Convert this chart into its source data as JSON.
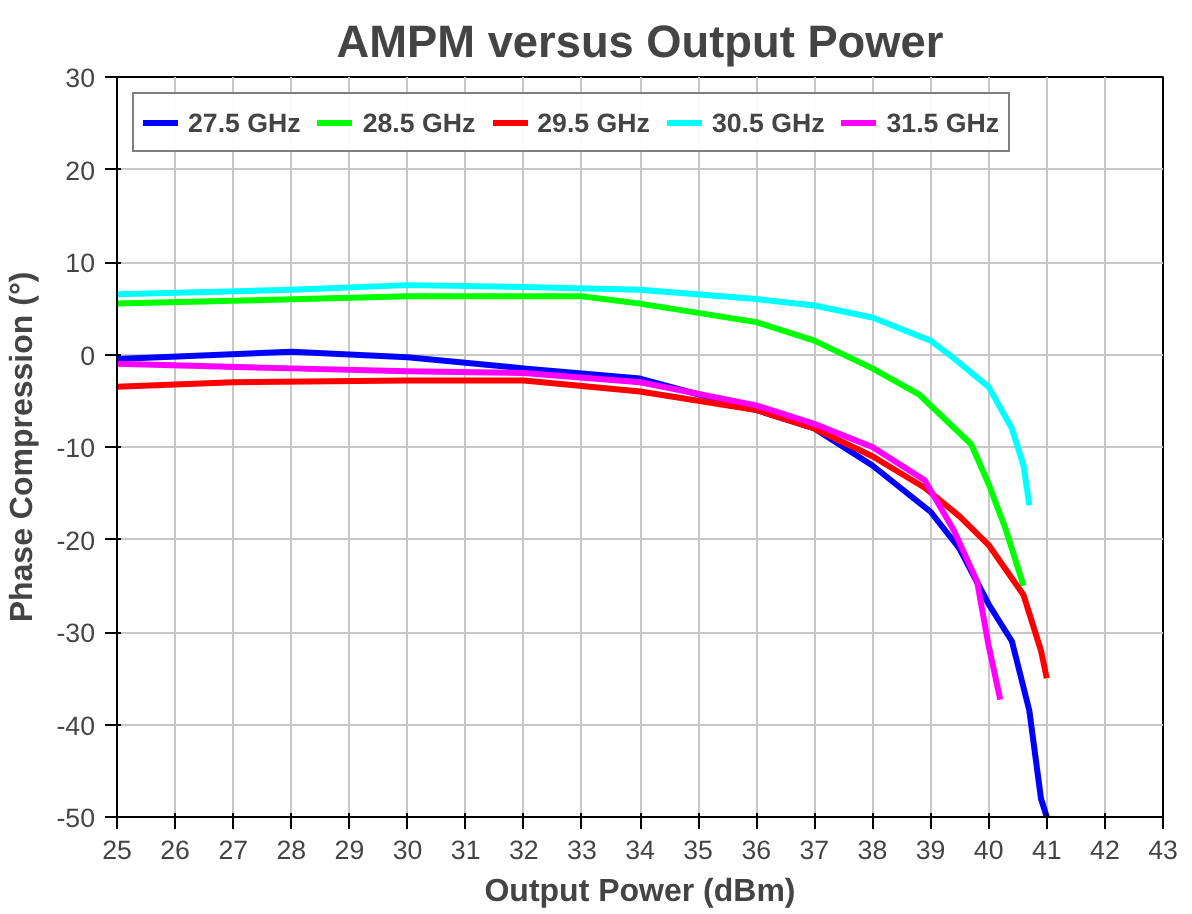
{
  "chart_data": {
    "type": "line",
    "title": "AMPM versus Output Power",
    "xlabel": "Output Power (dBm)",
    "ylabel": "Phase Compression (°)",
    "xlim": [
      25,
      43
    ],
    "xticks": [
      25,
      26,
      27,
      28,
      29,
      30,
      31,
      32,
      33,
      34,
      35,
      36,
      37,
      38,
      39,
      40,
      41,
      42,
      43
    ],
    "ylim": [
      -50,
      30
    ],
    "yticks": [
      -50,
      -40,
      -30,
      -20,
      -10,
      0,
      10,
      20,
      30
    ],
    "grid": true,
    "legend": "top left",
    "marker": "none",
    "line_style": "solid",
    "series": [
      {
        "name": "27.5 GHz",
        "color": "#0000ff",
        "x": [
          25,
          28,
          30,
          32,
          34,
          36,
          37,
          38,
          39,
          39.5,
          40,
          40.4,
          40.7,
          40.9,
          41
        ],
        "values": [
          -0.5,
          0.3,
          -0.3,
          -1.5,
          -2.6,
          -6,
          -8,
          -12,
          -17,
          -21,
          -27,
          -31,
          -38.5,
          -48,
          -50
        ]
      },
      {
        "name": "28.5 GHz",
        "color": "#00ff00",
        "x": [
          25,
          27,
          30,
          33,
          34,
          36,
          37,
          38,
          38.8,
          39.7,
          40,
          40.3,
          40.6
        ],
        "values": [
          5.5,
          5.8,
          6.3,
          6.3,
          5.5,
          3.5,
          1.5,
          -1.5,
          -4.3,
          -9.7,
          -14,
          -19,
          -25
        ]
      },
      {
        "name": "29.5 GHz",
        "color": "#ff0000",
        "x": [
          25,
          27,
          30,
          32,
          34,
          36,
          37,
          38,
          38.9,
          39.5,
          40,
          40.6,
          40.9,
          41
        ],
        "values": [
          -3.5,
          -3,
          -2.8,
          -2.8,
          -4,
          -6,
          -8,
          -11,
          -14.4,
          -17.5,
          -20.6,
          -26,
          -32,
          -35
        ]
      },
      {
        "name": "30.5 GHz",
        "color": "#00ffff",
        "x": [
          25,
          28,
          30,
          32,
          34,
          36,
          37,
          38,
          39,
          39.4,
          40,
          40.4,
          40.6,
          40.7
        ],
        "values": [
          6.5,
          7,
          7.5,
          7.3,
          7,
          6,
          5.3,
          4,
          1.5,
          -0.4,
          -3.5,
          -8,
          -12,
          -16.3
        ]
      },
      {
        "name": "31.5 GHz",
        "color": "#ff00ff",
        "x": [
          25,
          28,
          30,
          32,
          34,
          36,
          37,
          38,
          38.9,
          39.4,
          39.8,
          40,
          40.2
        ],
        "values": [
          -1,
          -1.5,
          -1.8,
          -2,
          -3,
          -5.5,
          -7.5,
          -10,
          -13.6,
          -19,
          -24.5,
          -31.5,
          -37.3
        ]
      }
    ]
  }
}
